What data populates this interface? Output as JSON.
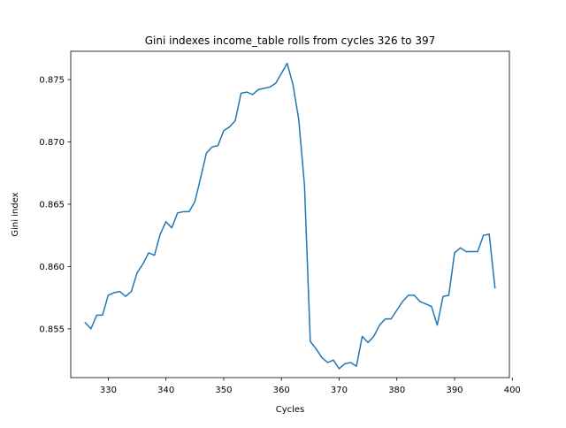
{
  "chart_data": {
    "type": "line",
    "title": "Gini indexes income_table rolls from cycles 326 to 397",
    "xlabel": "Cycles",
    "ylabel": "Gini index",
    "xlim": [
      323.5,
      399.5
    ],
    "ylim": [
      0.85109,
      0.87727
    ],
    "xticks": [
      330,
      340,
      350,
      360,
      370,
      380,
      390,
      400
    ],
    "yticks": [
      0.855,
      0.86,
      0.865,
      0.87,
      0.875
    ],
    "ytick_labels": [
      "0.855",
      "0.860",
      "0.865",
      "0.870",
      "0.875"
    ],
    "grid": false,
    "line_color": "#1f77b4",
    "series": [
      {
        "x": [
          326,
          327,
          328,
          329,
          330,
          331,
          332,
          333,
          334,
          335,
          336,
          337,
          338,
          339,
          340,
          341,
          342,
          343,
          344,
          345,
          346,
          347,
          348,
          349,
          350,
          351,
          352,
          353,
          354,
          355,
          356,
          357,
          358,
          359,
          360,
          361,
          362,
          363,
          364,
          365,
          366,
          367,
          368,
          369,
          370,
          371,
          372,
          373,
          374,
          375,
          376,
          377,
          378,
          379,
          380,
          381,
          382,
          383,
          384,
          385,
          386,
          387,
          388,
          389,
          390,
          391,
          392,
          393,
          394,
          395,
          396,
          397
        ],
        "values": [
          0.8555,
          0.855,
          0.8561,
          0.8561,
          0.8577,
          0.8579,
          0.858,
          0.8576,
          0.858,
          0.8595,
          0.8602,
          0.8611,
          0.8609,
          0.8626,
          0.8636,
          0.8631,
          0.8643,
          0.8644,
          0.8644,
          0.8652,
          0.8671,
          0.8691,
          0.8696,
          0.8697,
          0.8709,
          0.8712,
          0.8717,
          0.8739,
          0.874,
          0.8738,
          0.8742,
          0.8743,
          0.8744,
          0.8747,
          0.8755,
          0.8763,
          0.8746,
          0.8718,
          0.8665,
          0.854,
          0.8534,
          0.8527,
          0.8523,
          0.8525,
          0.8518,
          0.8522,
          0.8523,
          0.852,
          0.8544,
          0.8539,
          0.8544,
          0.8553,
          0.8558,
          0.8558,
          0.8565,
          0.8572,
          0.8577,
          0.8577,
          0.8572,
          0.857,
          0.8568,
          0.8553,
          0.8576,
          0.8577,
          0.8611,
          0.8615,
          0.8612,
          0.8612,
          0.8612,
          0.8625,
          0.8626,
          0.8583
        ]
      }
    ]
  }
}
